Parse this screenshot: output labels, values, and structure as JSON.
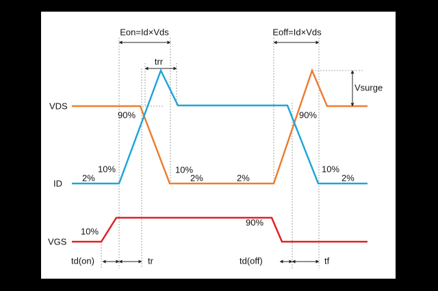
{
  "signals": {
    "vds": "VDS",
    "id": "ID",
    "vgs": "VGS"
  },
  "energy": {
    "eon": "Eon=Id×Vds",
    "eoff": "Eoff=Id×Vds"
  },
  "intervals": {
    "trr": "trr",
    "vsurge": "Vsurge",
    "td_on": "td(on)",
    "tr": "tr",
    "td_off": "td(off)",
    "tf": "tf"
  },
  "levels": {
    "vds_on_90": "90%",
    "vds_off_90": "90%",
    "id_on_10": "10%",
    "vds_on_10": "10%",
    "id_off_10": "10%",
    "id_on_2": "2%",
    "vds_on_2": "2%",
    "vds_low_2": "2%",
    "id_off_2": "2%",
    "vgs_on_10": "10%",
    "vgs_off_90": "90%"
  }
}
